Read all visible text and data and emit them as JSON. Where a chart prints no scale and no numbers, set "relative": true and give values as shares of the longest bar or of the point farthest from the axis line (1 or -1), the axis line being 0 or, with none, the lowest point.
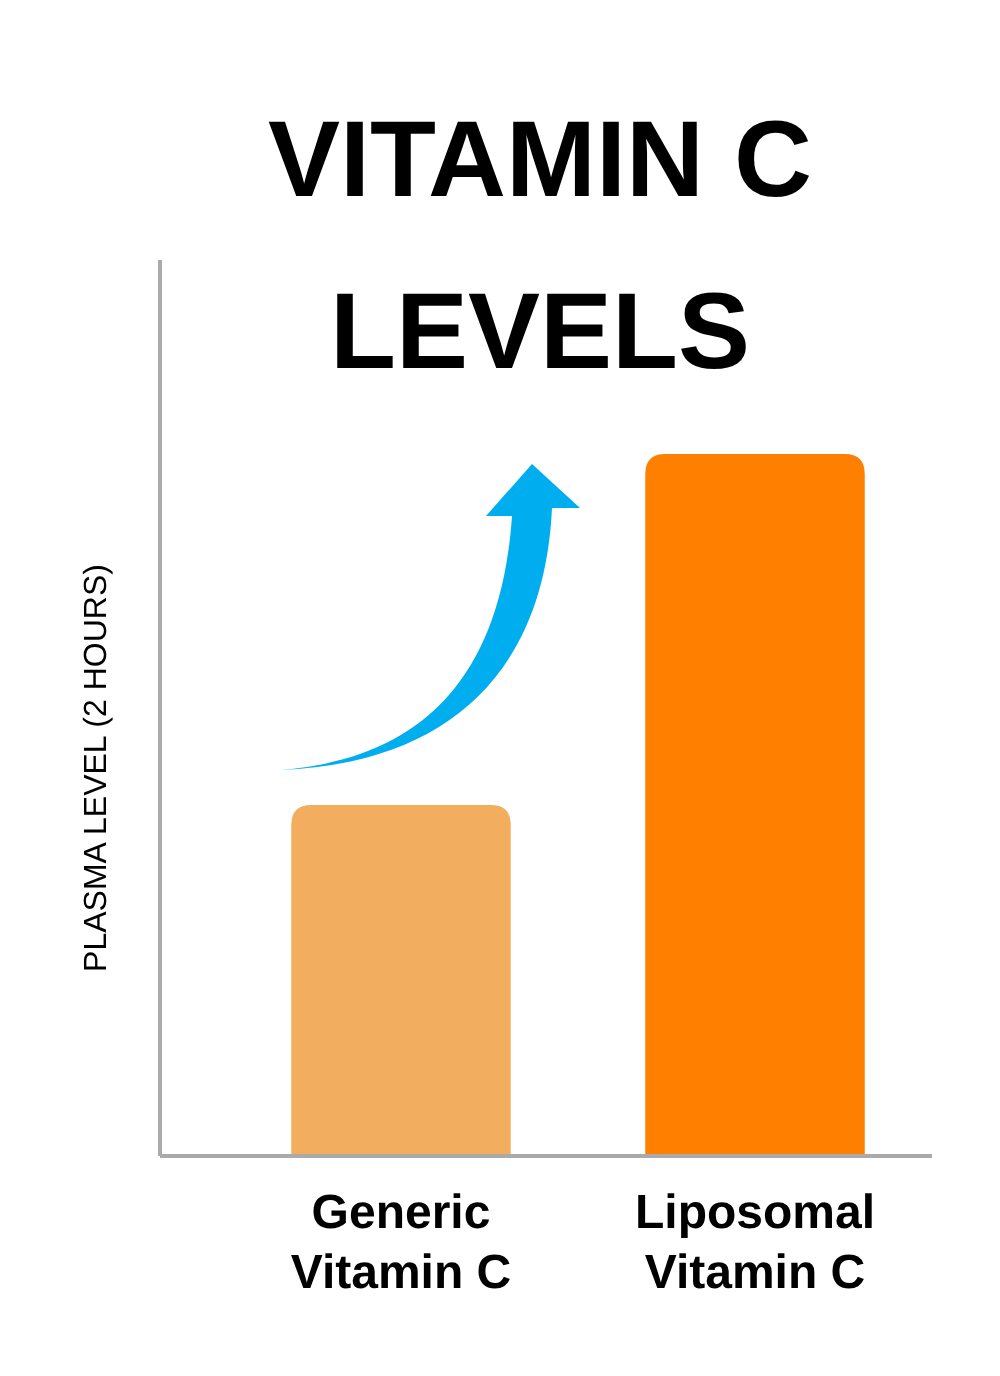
{
  "chart_data": {
    "type": "bar",
    "title": "VITAMIN C LEVELS",
    "ylabel": "PLASMA LEVEL (2 HOURS)",
    "categories": [
      "Generic Vitamin C",
      "Liposomal Vitamin C"
    ],
    "values": [
      0.5,
      1
    ],
    "colors": [
      "#f2ae5e",
      "#ff8000"
    ],
    "relative": true
  }
}
